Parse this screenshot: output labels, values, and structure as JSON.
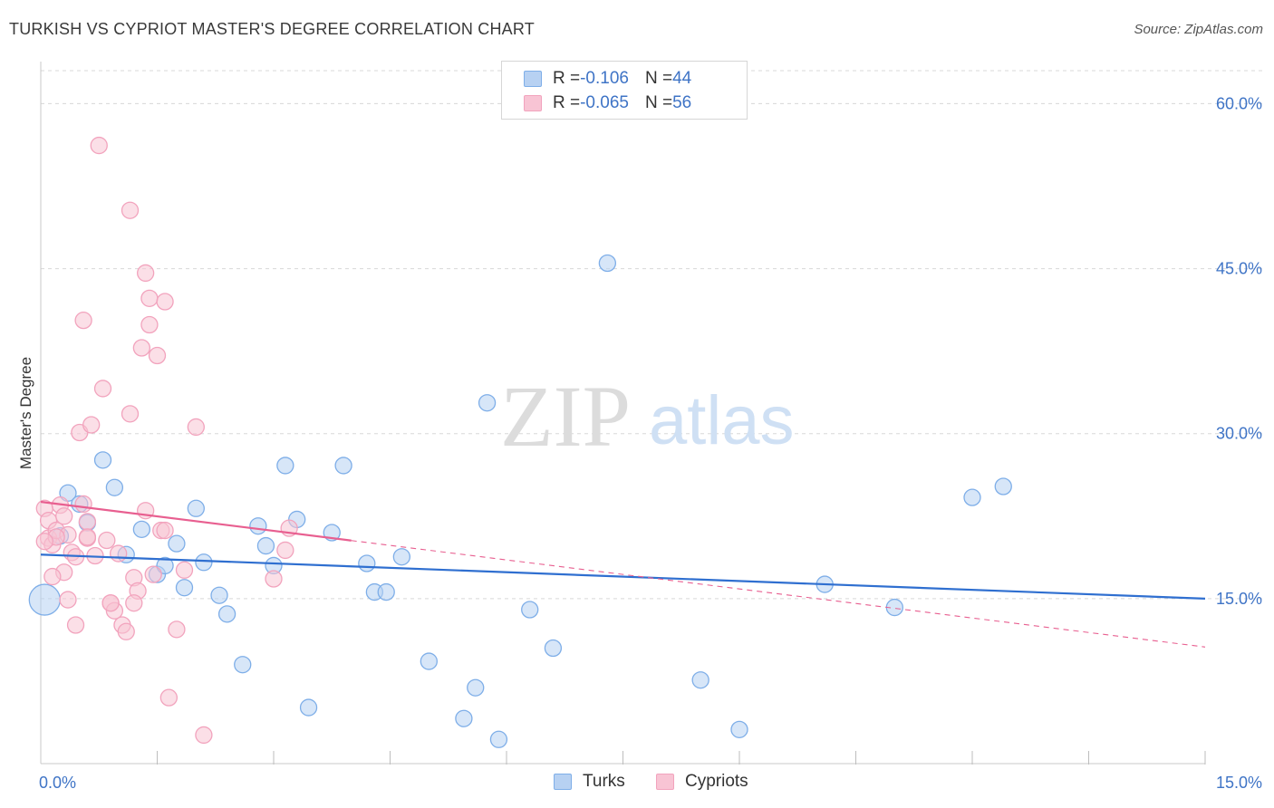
{
  "header": {
    "title": "TURKISH VS CYPRIOT MASTER'S DEGREE CORRELATION CHART",
    "source": "Source: ZipAtlas.com"
  },
  "watermark": {
    "zip": "ZIP",
    "atlas": "atlas"
  },
  "legend": {
    "rows": [
      {
        "r_label": "R = ",
        "r_value": "-0.106",
        "n_label": "N = ",
        "n_value": "44",
        "color": "#7eaee8"
      },
      {
        "r_label": "R = ",
        "r_value": "-0.065",
        "n_label": "N = ",
        "n_value": "56",
        "color": "#f2a3bd"
      }
    ]
  },
  "bottom_legend": {
    "turks": "Turks",
    "cypriots": "Cypriots"
  },
  "colors": {
    "turks_fill": "#b7d1f2",
    "turks_stroke": "#7eaee8",
    "turks_line": "#2f6fd0",
    "cypriots_fill": "#f8c4d4",
    "cypriots_stroke": "#f2a3bd",
    "cypriots_line": "#e85f90",
    "tick_text": "#3f74c6",
    "grid": "#d8d8d8"
  },
  "chart_data": {
    "type": "scatter",
    "title": "TURKISH VS CYPRIOT MASTER'S DEGREE CORRELATION CHART",
    "xlabel": "",
    "ylabel": "Master's Degree",
    "xlim": [
      0,
      15
    ],
    "ylim": [
      0,
      63
    ],
    "x_tick_labels": [
      "0.0%",
      "15.0%"
    ],
    "y_ticks": [
      15,
      30,
      45,
      60
    ],
    "y_tick_labels": [
      "15.0%",
      "30.0%",
      "45.0%",
      "60.0%"
    ],
    "grid": true,
    "series": [
      {
        "name": "Turks",
        "r": -0.106,
        "n": 44,
        "trend": {
          "x": [
            0,
            15
          ],
          "y": [
            19.0,
            15.0
          ],
          "solid_to": 15
        },
        "points": [
          [
            0.05,
            14.9
          ],
          [
            0.35,
            24.6
          ],
          [
            0.5,
            23.6
          ],
          [
            0.6,
            21.9
          ],
          [
            0.8,
            27.6
          ],
          [
            0.95,
            25.1
          ],
          [
            1.1,
            19.0
          ],
          [
            1.3,
            21.3
          ],
          [
            1.5,
            17.2
          ],
          [
            1.6,
            18.0
          ],
          [
            1.75,
            20.0
          ],
          [
            1.85,
            16.0
          ],
          [
            2.0,
            23.2
          ],
          [
            2.1,
            18.3
          ],
          [
            2.3,
            15.3
          ],
          [
            2.4,
            13.6
          ],
          [
            2.6,
            9.0
          ],
          [
            2.8,
            21.6
          ],
          [
            2.9,
            19.8
          ],
          [
            3.0,
            18.0
          ],
          [
            3.15,
            27.1
          ],
          [
            3.3,
            22.2
          ],
          [
            3.45,
            5.1
          ],
          [
            3.75,
            21.0
          ],
          [
            3.9,
            27.1
          ],
          [
            4.2,
            18.2
          ],
          [
            4.3,
            15.6
          ],
          [
            4.45,
            15.6
          ],
          [
            4.65,
            18.8
          ],
          [
            5.0,
            9.3
          ],
          [
            5.45,
            4.1
          ],
          [
            5.6,
            6.9
          ],
          [
            5.75,
            32.8
          ],
          [
            5.9,
            2.2
          ],
          [
            6.3,
            14.0
          ],
          [
            6.6,
            10.5
          ],
          [
            7.3,
            45.5
          ],
          [
            8.5,
            7.6
          ],
          [
            9.0,
            3.1
          ],
          [
            10.1,
            16.3
          ],
          [
            11.0,
            14.2
          ],
          [
            12.0,
            24.2
          ],
          [
            12.4,
            25.2
          ],
          [
            0.25,
            20.7
          ]
        ]
      },
      {
        "name": "Cypriots",
        "r": -0.065,
        "n": 56,
        "trend": {
          "x": [
            0,
            15
          ],
          "y": [
            23.8,
            10.6
          ],
          "solid_to": 4.0
        },
        "points": [
          [
            0.05,
            23.2
          ],
          [
            0.1,
            22.1
          ],
          [
            0.1,
            20.5
          ],
          [
            0.15,
            19.9
          ],
          [
            0.2,
            21.2
          ],
          [
            0.25,
            23.5
          ],
          [
            0.3,
            22.5
          ],
          [
            0.3,
            17.4
          ],
          [
            0.35,
            14.9
          ],
          [
            0.35,
            20.8
          ],
          [
            0.4,
            19.2
          ],
          [
            0.45,
            18.8
          ],
          [
            0.45,
            12.6
          ],
          [
            0.5,
            30.1
          ],
          [
            0.55,
            40.3
          ],
          [
            0.55,
            23.6
          ],
          [
            0.6,
            22.0
          ],
          [
            0.6,
            20.5
          ],
          [
            0.65,
            30.8
          ],
          [
            0.7,
            18.9
          ],
          [
            0.75,
            56.2
          ],
          [
            0.8,
            34.1
          ],
          [
            0.85,
            20.3
          ],
          [
            0.9,
            14.6
          ],
          [
            0.95,
            13.9
          ],
          [
            1.0,
            19.1
          ],
          [
            1.05,
            12.6
          ],
          [
            1.1,
            12.0
          ],
          [
            1.15,
            31.8
          ],
          [
            1.15,
            50.3
          ],
          [
            1.2,
            16.9
          ],
          [
            1.25,
            15.7
          ],
          [
            1.3,
            37.8
          ],
          [
            1.35,
            44.6
          ],
          [
            1.4,
            42.3
          ],
          [
            1.4,
            39.9
          ],
          [
            1.45,
            17.2
          ],
          [
            1.5,
            37.1
          ],
          [
            1.55,
            21.2
          ],
          [
            1.6,
            42.0
          ],
          [
            1.6,
            21.2
          ],
          [
            1.65,
            6.0
          ],
          [
            1.75,
            12.2
          ],
          [
            1.85,
            17.6
          ],
          [
            2.0,
            30.6
          ],
          [
            2.1,
            2.6
          ],
          [
            3.0,
            16.8
          ],
          [
            3.15,
            19.4
          ],
          [
            3.2,
            21.4
          ],
          [
            0.2,
            20.6
          ],
          [
            1.35,
            23.0
          ],
          [
            0.9,
            14.6
          ],
          [
            0.15,
            17.0
          ],
          [
            0.05,
            20.2
          ],
          [
            0.6,
            20.6
          ],
          [
            1.2,
            14.6
          ]
        ]
      }
    ]
  }
}
